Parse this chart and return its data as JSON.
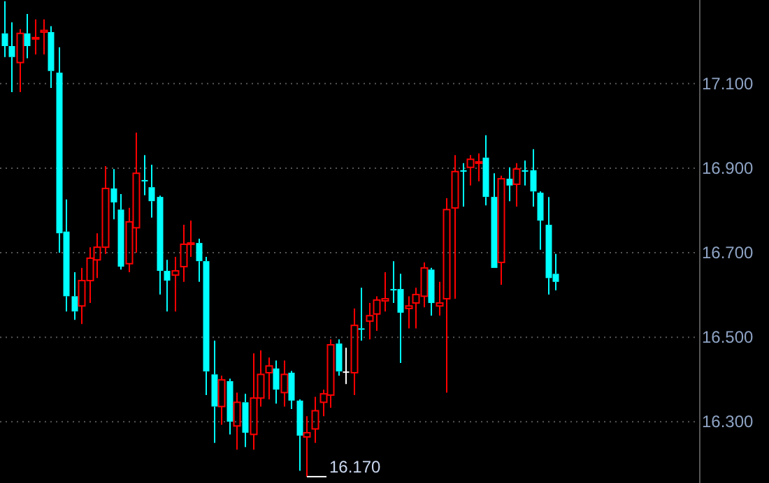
{
  "chart_data": {
    "type": "candlestick",
    "categories": [
      null,
      null,
      null,
      null,
      null,
      null,
      null,
      null,
      null,
      null,
      null,
      null,
      null,
      null,
      null,
      null,
      null,
      null,
      null,
      null,
      null,
      null,
      null,
      null,
      null,
      null,
      null,
      null,
      null,
      null,
      null,
      null,
      null,
      null,
      null,
      null,
      null,
      null,
      null,
      null,
      null,
      null,
      null,
      null,
      null,
      null,
      null,
      null,
      null,
      null,
      null,
      null,
      null,
      null,
      null,
      null,
      null,
      null,
      null,
      null,
      null,
      null,
      null,
      null,
      null,
      null,
      null,
      null,
      null,
      null,
      null,
      null,
      null,
      null,
      null,
      null,
      null,
      null,
      null,
      null,
      null,
      null,
      null,
      null,
      null,
      null,
      null,
      null,
      null,
      null
    ],
    "ohlc": [
      [
        17.219,
        17.295,
        17.163,
        17.189
      ],
      [
        17.189,
        17.245,
        17.08,
        17.163
      ],
      [
        17.15,
        17.229,
        17.08,
        17.219
      ],
      [
        17.219,
        17.265,
        17.16,
        17.189
      ],
      [
        17.206,
        17.252,
        17.169,
        17.209
      ],
      [
        17.222,
        17.252,
        17.169,
        17.226
      ],
      [
        17.222,
        17.236,
        17.09,
        17.13
      ],
      [
        17.126,
        17.186,
        16.7,
        16.746
      ],
      [
        16.75,
        16.826,
        16.561,
        16.597
      ],
      [
        16.597,
        16.654,
        16.541,
        16.561
      ],
      [
        16.574,
        16.664,
        16.531,
        16.634
      ],
      [
        16.634,
        16.713,
        16.581,
        16.687
      ],
      [
        16.683,
        16.746,
        16.64,
        16.713
      ],
      [
        16.713,
        16.905,
        16.697,
        16.852
      ],
      [
        16.852,
        16.898,
        16.779,
        16.819
      ],
      [
        16.802,
        16.839,
        16.66,
        16.667
      ],
      [
        16.674,
        16.806,
        16.654,
        16.773
      ],
      [
        16.759,
        16.984,
        16.7,
        16.888
      ],
      [
        16.872,
        16.931,
        16.836,
        16.869
      ],
      [
        16.855,
        16.908,
        16.783,
        16.822
      ],
      [
        16.832,
        16.835,
        16.601,
        16.657
      ],
      [
        16.657,
        16.683,
        16.561,
        16.634
      ],
      [
        16.647,
        16.69,
        16.561,
        16.657
      ],
      [
        16.667,
        16.766,
        16.631,
        16.72
      ],
      [
        16.72,
        16.776,
        16.69,
        16.723
      ],
      [
        16.723,
        16.733,
        16.631,
        16.68
      ],
      [
        16.68,
        16.69,
        16.363,
        16.419
      ],
      [
        16.412,
        16.492,
        16.25,
        16.336
      ],
      [
        16.336,
        16.409,
        16.293,
        16.399
      ],
      [
        16.396,
        16.402,
        16.27,
        16.3
      ],
      [
        16.29,
        16.369,
        16.234,
        16.346
      ],
      [
        16.346,
        16.366,
        16.24,
        16.274
      ],
      [
        16.27,
        16.462,
        16.234,
        16.356
      ],
      [
        16.356,
        16.469,
        16.336,
        16.412
      ],
      [
        16.416,
        16.452,
        16.353,
        16.432
      ],
      [
        16.426,
        16.445,
        16.343,
        16.376
      ],
      [
        16.369,
        16.445,
        16.336,
        16.412
      ],
      [
        16.416,
        16.42,
        16.33,
        16.35
      ],
      [
        16.35,
        16.353,
        16.184,
        16.267
      ],
      [
        16.264,
        16.313,
        16.17,
        16.274
      ],
      [
        16.283,
        16.359,
        16.25,
        16.326
      ],
      [
        16.346,
        16.376,
        16.313,
        16.366
      ],
      [
        16.363,
        16.495,
        16.333,
        16.482
      ],
      [
        16.485,
        16.495,
        16.409,
        16.419
      ],
      [
        16.419,
        16.475,
        16.389,
        16.419
      ],
      [
        16.416,
        16.568,
        16.363,
        16.528
      ],
      [
        16.521,
        16.617,
        16.492,
        16.518
      ],
      [
        16.538,
        16.581,
        16.495,
        16.551
      ],
      [
        16.555,
        16.597,
        16.515,
        16.588
      ],
      [
        16.586,
        16.654,
        16.561,
        16.591
      ],
      [
        16.614,
        16.68,
        16.581,
        16.611
      ],
      [
        16.614,
        16.65,
        16.439,
        16.558
      ],
      [
        16.568,
        16.597,
        16.521,
        16.574
      ],
      [
        16.581,
        16.617,
        16.521,
        16.601
      ],
      [
        16.597,
        16.677,
        16.571,
        16.664
      ],
      [
        16.66,
        16.664,
        16.551,
        16.581
      ],
      [
        16.574,
        16.631,
        16.551,
        16.581
      ],
      [
        16.591,
        16.829,
        16.369,
        16.802
      ],
      [
        16.806,
        16.931,
        16.591,
        16.892
      ],
      [
        16.895,
        16.912,
        16.809,
        16.892
      ],
      [
        16.902,
        16.931,
        16.859,
        16.921
      ],
      [
        16.912,
        16.935,
        16.869,
        16.915
      ],
      [
        16.925,
        16.978,
        16.812,
        16.832
      ],
      [
        16.832,
        16.888,
        16.664,
        16.664
      ],
      [
        16.677,
        16.882,
        16.624,
        16.875
      ],
      [
        16.875,
        16.902,
        16.822,
        16.859
      ],
      [
        16.862,
        16.912,
        16.809,
        16.898
      ],
      [
        16.895,
        16.918,
        16.859,
        16.892
      ],
      [
        16.895,
        16.945,
        16.809,
        16.845
      ],
      [
        16.842,
        16.845,
        16.707,
        16.776
      ],
      [
        16.766,
        16.832,
        16.601,
        16.64
      ],
      [
        16.65,
        16.697,
        16.611,
        16.631
      ],
      null,
      null,
      null,
      null,
      null,
      null,
      null,
      null,
      null,
      null,
      null,
      null,
      null,
      null,
      null,
      null,
      null,
      null
    ],
    "colors": [
      "#00ffff",
      "#00ffff",
      "#ff0000",
      "#00ffff",
      "#ff0000",
      "#ff0000",
      "#00ffff",
      "#00ffff",
      "#00ffff",
      "#00ffff",
      "#ff0000",
      "#ff0000",
      "#ff0000",
      "#ff0000",
      "#00ffff",
      "#00ffff",
      "#ff0000",
      "#ff0000",
      "#00ffff",
      "#00ffff",
      "#00ffff",
      "#00ffff",
      "#ff0000",
      "#ff0000",
      "#ff0000",
      "#00ffff",
      "#00ffff",
      "#00ffff",
      "#ff0000",
      "#00ffff",
      "#ff0000",
      "#00ffff",
      "#ff0000",
      "#ff0000",
      "#ff0000",
      "#00ffff",
      "#ff0000",
      "#00ffff",
      "#00ffff",
      "#ff0000",
      "#ff0000",
      "#ff0000",
      "#ff0000",
      "#00ffff",
      "#ffffff",
      "#ff0000",
      "#00ffff",
      "#ff0000",
      "#ff0000",
      "#ff0000",
      "#00ffff",
      "#00ffff",
      "#ff0000",
      "#ff0000",
      "#ff0000",
      "#00ffff",
      "#ff0000",
      "#ff0000",
      "#ff0000",
      "#00ffff",
      "#ff0000",
      "#ff0000",
      "#00ffff",
      "#00ffff",
      "#ff0000",
      "#00ffff",
      "#ff0000",
      "#00ffff",
      "#00ffff",
      "#00ffff",
      "#00ffff",
      "#00ffff",
      null,
      null,
      null,
      null,
      null,
      null,
      null,
      null,
      null,
      null,
      null,
      null,
      null,
      null,
      null,
      null,
      null,
      null
    ],
    "ylim": [
      16.155,
      17.298
    ],
    "yticks": [
      {
        "value": 17.1,
        "label": "17.100"
      },
      {
        "value": 16.9,
        "label": "16.900"
      },
      {
        "value": 16.7,
        "label": "16.700"
      },
      {
        "value": 16.5,
        "label": "16.500"
      },
      {
        "value": 16.3,
        "label": "16.300"
      }
    ],
    "grid": "y",
    "annotations": [
      "16.170"
    ]
  }
}
